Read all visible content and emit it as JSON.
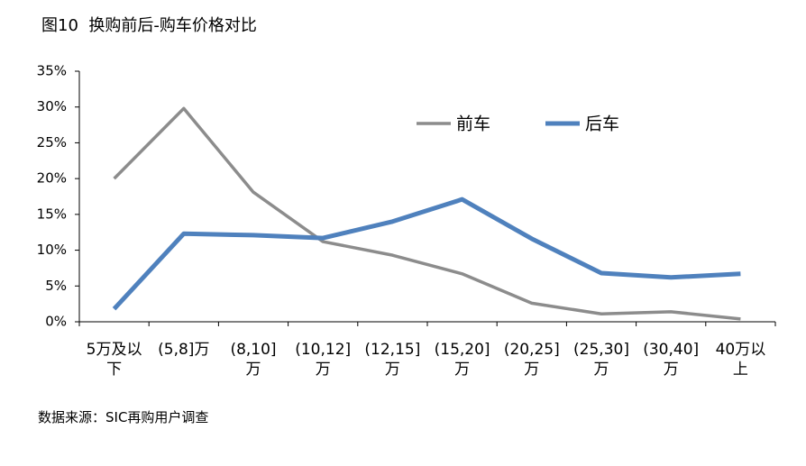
{
  "chart_data": {
    "type": "line",
    "title": "图10  换购前后-购车价格对比",
    "source": "数据来源：SIC再购用户调查",
    "categories": [
      "5万及以下",
      "(5,8]万",
      "(8,10]万",
      "(10,12]万",
      "(12,15]万",
      "(15,20]万",
      "(20,25]万",
      "(25,30]万",
      "(30,40]万",
      "40万以上"
    ],
    "series": [
      {
        "name": "前车",
        "color": "#8c8c8c",
        "values": [
          20.0,
          29.8,
          18.1,
          11.2,
          9.3,
          6.7,
          2.6,
          1.1,
          1.4,
          0.4
        ]
      },
      {
        "name": "后车",
        "color": "#4f81bd",
        "values": [
          1.8,
          12.3,
          12.1,
          11.7,
          14.0,
          17.1,
          11.6,
          6.8,
          6.2,
          6.7
        ]
      }
    ],
    "ylim": [
      0,
      35
    ],
    "yticks": [
      {
        "value": 0,
        "label": "0%"
      },
      {
        "value": 5,
        "label": "5%"
      },
      {
        "value": 10,
        "label": "10%"
      },
      {
        "value": 15,
        "label": "15%"
      },
      {
        "value": 20,
        "label": "20%"
      },
      {
        "value": 25,
        "label": "25%"
      },
      {
        "value": 30,
        "label": "30%"
      },
      {
        "value": 35,
        "label": "35%"
      }
    ],
    "grid": false,
    "legend": "top"
  }
}
